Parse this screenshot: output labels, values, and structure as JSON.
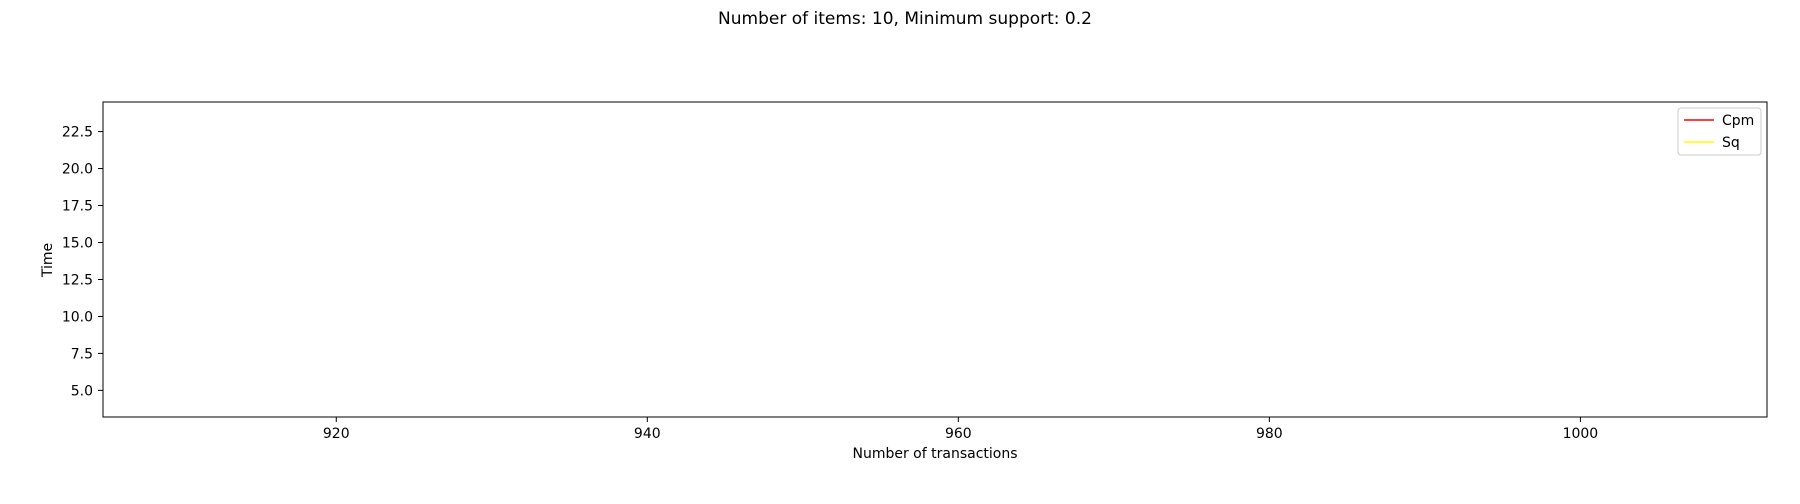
{
  "chart_data": {
    "type": "line",
    "title": "Number of items: 10, Minimum support: 0.2",
    "xlabel": "Number of transactions",
    "ylabel": "Time",
    "xlim": [
      905,
      1012
    ],
    "ylim": [
      3.2,
      24.5
    ],
    "x_ticks": [
      920,
      940,
      960,
      980,
      1000
    ],
    "y_ticks": [
      5.0,
      7.5,
      10.0,
      12.5,
      15.0,
      17.5,
      20.0,
      22.5
    ],
    "y_tick_labels": [
      "5.0",
      "7.5",
      "10.0",
      "12.5",
      "15.0",
      "17.5",
      "20.0",
      "22.5"
    ],
    "grid": false,
    "legend": "top-right",
    "series": [
      {
        "name": "Cpm",
        "color": "#ff0000",
        "x": [],
        "y": []
      },
      {
        "name": "Sq",
        "color": "#ffff00",
        "x": [],
        "y": []
      }
    ]
  }
}
